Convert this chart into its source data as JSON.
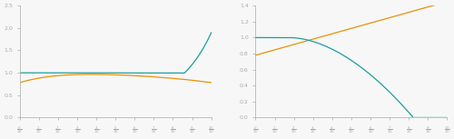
{
  "left_ylim": [
    0.0,
    2.5
  ],
  "right_ylim": [
    0.0,
    1.4
  ],
  "left_yticks": [
    0.0,
    0.5,
    1.0,
    1.5,
    2.0,
    2.5
  ],
  "right_yticks": [
    0.0,
    0.2,
    0.4,
    0.6,
    0.8,
    1.0,
    1.2,
    1.4
  ],
  "xlim": [
    0.0,
    1.0
  ],
  "color_orange": "#E6920A",
  "color_teal": "#1A9E9E",
  "background": "#F7F7F7",
  "n_points": 800
}
